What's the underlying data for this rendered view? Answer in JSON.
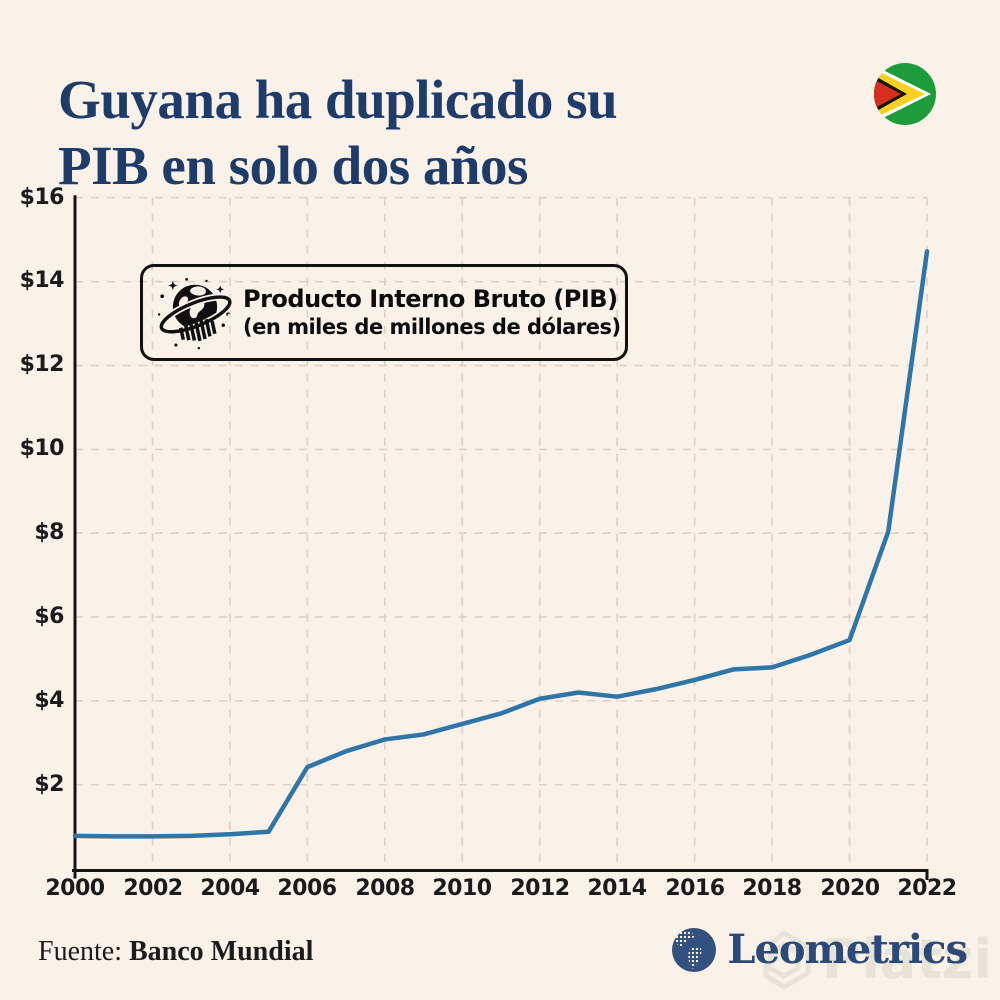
{
  "title": {
    "line1": "Guyana ha duplicado su",
    "line2": "PIB en solo dos años"
  },
  "flag": {
    "country": "Guyana",
    "colors": {
      "green": "#1E9C3B",
      "yellow": "#F8D021",
      "red": "#D72E22",
      "black": "#151515",
      "white": "#FFFFFF"
    }
  },
  "legend": {
    "line1": "Producto Interno Bruto (PIB)",
    "line2": "(en miles de millones de dólares)",
    "icon": "globe-chart-icon"
  },
  "chart_data": {
    "type": "line",
    "series_name": "Producto Interno Bruto (PIB), miles de millones de dólares",
    "x": [
      2000,
      2001,
      2002,
      2003,
      2004,
      2005,
      2006,
      2007,
      2008,
      2009,
      2010,
      2011,
      2012,
      2013,
      2014,
      2015,
      2016,
      2017,
      2018,
      2019,
      2020,
      2021,
      2022
    ],
    "values": [
      0.78,
      0.77,
      0.77,
      0.78,
      0.82,
      0.88,
      2.42,
      2.8,
      3.08,
      3.2,
      3.45,
      3.7,
      4.05,
      4.2,
      4.1,
      4.28,
      4.5,
      4.75,
      4.8,
      5.1,
      5.45,
      8.04,
      14.72
    ],
    "xlim": [
      2000,
      2022
    ],
    "ylim": [
      0,
      16
    ],
    "x_ticks": [
      2000,
      2002,
      2004,
      2006,
      2008,
      2010,
      2012,
      2014,
      2016,
      2018,
      2020,
      2022
    ],
    "x_tick_labels": [
      "2000",
      "2002",
      "2004",
      "2006",
      "2008",
      "2010",
      "2012",
      "2014",
      "2016",
      "2018",
      "2020",
      "2022"
    ],
    "y_ticks": [
      2,
      4,
      6,
      8,
      10,
      12,
      14,
      16
    ],
    "y_tick_labels": [
      "$2",
      "$4",
      "$6",
      "$8",
      "$10",
      "$12",
      "$14",
      "$16"
    ],
    "grid": "dashed",
    "legend_position": "top-left",
    "line_color": "#2E75A8",
    "axis_color": "#141414",
    "background_color": "#FAF1E8"
  },
  "footer": {
    "source_label": "Fuente:",
    "source_value": "Banco Mundial"
  },
  "brand": {
    "name": "Leometrics"
  },
  "watermark": {
    "text": "Platzi"
  }
}
